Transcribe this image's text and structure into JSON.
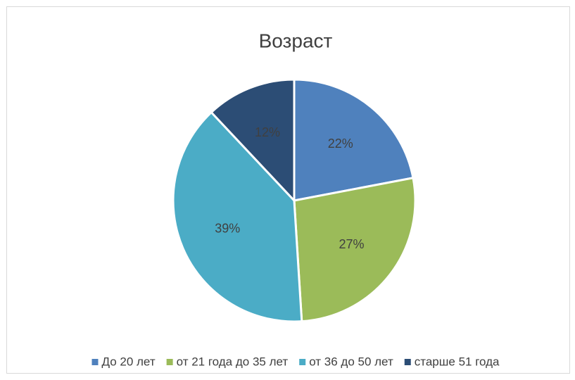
{
  "chart_data": {
    "type": "pie",
    "title": "Возраст",
    "categories": [
      "До 20 лет",
      "от 21 года до 35 лет",
      "от 36 до 50 лет",
      "старше 51 года"
    ],
    "values": [
      22,
      27,
      39,
      12
    ],
    "value_labels": [
      "22%",
      "27%",
      "39%",
      "12%"
    ],
    "colors": [
      "#4f81bd",
      "#9bbb59",
      "#4bacc6",
      "#2c4d75"
    ],
    "legend": "bottom"
  }
}
